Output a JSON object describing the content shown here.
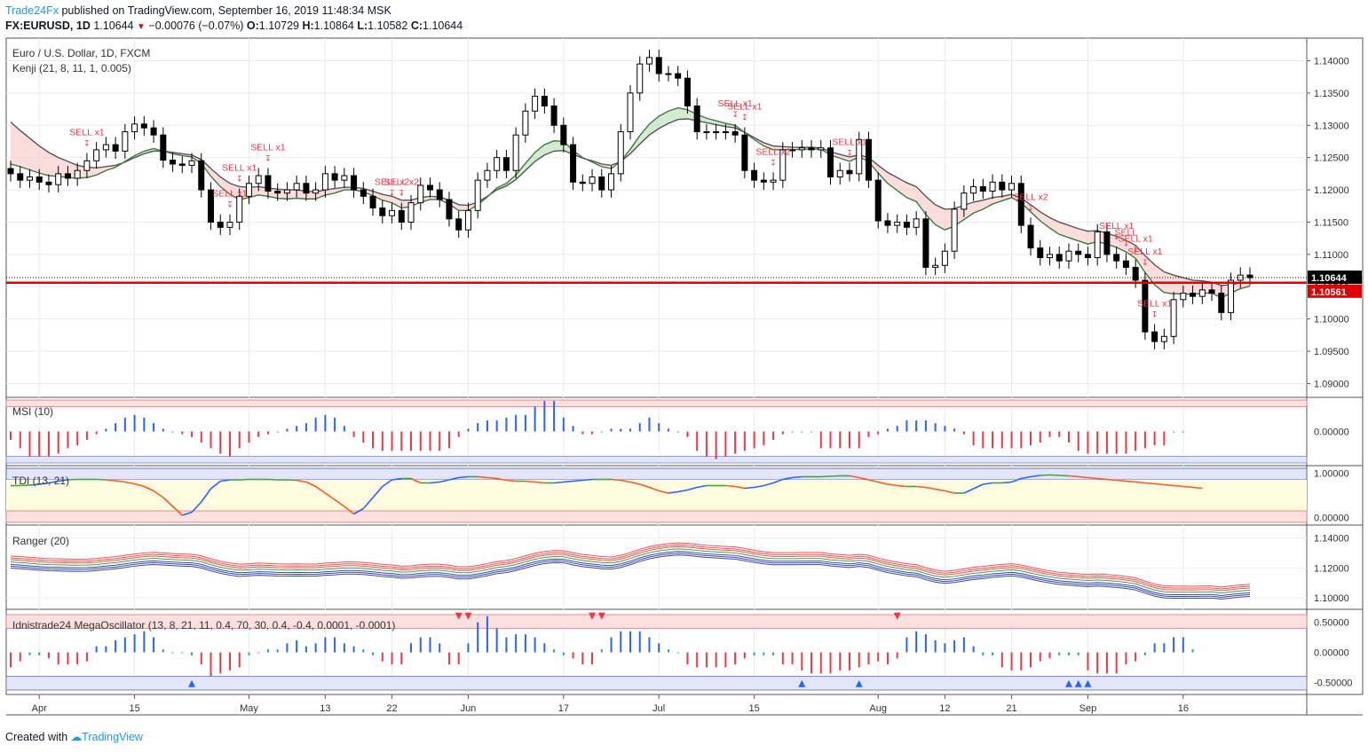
{
  "header": {
    "brand": "Trade24Fx",
    "published": "published on TradingView.com, September 16, 2019 11:48:34 MSK",
    "symbol": "FX:EURUSD, 1D",
    "last": "1.10644",
    "change": "−0.00076 (−0.07%)",
    "o_label": "O:",
    "o": "1.10729",
    "h_label": "H:",
    "h": "1.10864",
    "l_label": "L:",
    "l": "1.10582",
    "c_label": "C:",
    "c": "1.10644"
  },
  "footer": {
    "created": "Created with",
    "tv": "TradingView"
  },
  "colors": {
    "bull": "#ffffff",
    "bear": "#000000",
    "sell": "#f23645",
    "blue": "#2962ff",
    "green": "#26a69a"
  },
  "chart_data": [
    {
      "type": "candlestick",
      "title": "Euro / U.S. Dollar, 1D, FXCM",
      "indicator": "Kenji (21, 8, 11, 1, 0.005)",
      "ylim": [
        1.088,
        1.1435
      ],
      "y_ticks": [
        "1.14000",
        "1.13500",
        "1.13000",
        "1.12500",
        "1.12000",
        "1.11500",
        "1.11000",
        "1.10500",
        "1.10000",
        "1.09500",
        "1.09000"
      ],
      "last_price_label": "1.10644",
      "support_label": "1.10561",
      "support_level": 1.10561,
      "x_ticks": [
        {
          "label": "Apr",
          "i": 3
        },
        {
          "label": "15",
          "i": 13
        },
        {
          "label": "May",
          "i": 25
        },
        {
          "label": "13",
          "i": 33
        },
        {
          "label": "22",
          "i": 40
        },
        {
          "label": "Jun",
          "i": 48
        },
        {
          "label": "17",
          "i": 58
        },
        {
          "label": "Jul",
          "i": 68
        },
        {
          "label": "15",
          "i": 78
        },
        {
          "label": "Aug",
          "i": 91
        },
        {
          "label": "12",
          "i": 98
        },
        {
          "label": "21",
          "i": 105
        },
        {
          "label": "Sep",
          "i": 113
        },
        {
          "label": "16",
          "i": 123
        }
      ],
      "closes": [
        1.1225,
        1.1215,
        1.122,
        1.1212,
        1.1208,
        1.1225,
        1.1218,
        1.123,
        1.1245,
        1.1262,
        1.127,
        1.126,
        1.129,
        1.1302,
        1.1296,
        1.1285,
        1.1246,
        1.124,
        1.1238,
        1.1245,
        1.12,
        1.115,
        1.1142,
        1.115,
        1.119,
        1.121,
        1.1222,
        1.1198,
        1.1195,
        1.12,
        1.121,
        1.1195,
        1.12,
        1.1225,
        1.1215,
        1.1222,
        1.12,
        1.119,
        1.1172,
        1.116,
        1.1168,
        1.115,
        1.118,
        1.1207,
        1.12,
        1.1185,
        1.1155,
        1.1138,
        1.1168,
        1.1215,
        1.123,
        1.125,
        1.123,
        1.1285,
        1.1322,
        1.1345,
        1.133,
        1.13,
        1.127,
        1.1212,
        1.121,
        1.122,
        1.12,
        1.1225,
        1.129,
        1.135,
        1.1395,
        1.1405,
        1.138,
        1.138,
        1.1373,
        1.133,
        1.129,
        1.129,
        1.129,
        1.129,
        1.1285,
        1.123,
        1.1215,
        1.1212,
        1.1215,
        1.1262,
        1.1262,
        1.1265,
        1.1262,
        1.1265,
        1.122,
        1.123,
        1.1225,
        1.1278,
        1.1215,
        1.1152,
        1.1145,
        1.115,
        1.1142,
        1.1155,
        1.108,
        1.1083,
        1.1105,
        1.117,
        1.1195,
        1.1205,
        1.1198,
        1.1212,
        1.12,
        1.121,
        1.1145,
        1.111,
        1.1095,
        1.11,
        1.109,
        1.1105,
        1.11,
        1.1095,
        1.1135,
        1.11,
        1.109,
        1.108,
        1.106,
        1.098,
        1.0965,
        1.0973,
        1.103,
        1.104,
        1.1035,
        1.1045,
        1.104,
        1.101,
        1.106,
        1.1068,
        1.1064
      ],
      "kenji_fast": [
        1.124,
        1.1236,
        1.1231,
        1.1226,
        1.1222,
        1.1221,
        1.1219,
        1.1218,
        1.1219,
        1.1223,
        1.123,
        1.1235,
        1.1244,
        1.1253,
        1.126,
        1.1264,
        1.126,
        1.1256,
        1.1253,
        1.1251,
        1.1241,
        1.1221,
        1.1205,
        1.1193,
        1.1185,
        1.1188,
        1.1192,
        1.119,
        1.1187,
        1.1186,
        1.1187,
        1.1186,
        1.1186,
        1.1192,
        1.1195,
        1.12,
        1.12,
        1.1197,
        1.1191,
        1.1184,
        1.118,
        1.1172,
        1.1174,
        1.1181,
        1.1185,
        1.1185,
        1.1178,
        1.1168,
        1.1168,
        1.1177,
        1.1189,
        1.1203,
        1.121,
        1.1223,
        1.1241,
        1.1258,
        1.127,
        1.1276,
        1.1275,
        1.1261,
        1.125,
        1.1243,
        1.1236,
        1.1233,
        1.1244,
        1.1263,
        1.1284,
        1.1302,
        1.1314,
        1.1322,
        1.1327,
        1.1324,
        1.1317,
        1.1311,
        1.1307,
        1.1303,
        1.13,
        1.1289,
        1.1278,
        1.1268,
        1.1262,
        1.1262,
        1.1262,
        1.1263,
        1.1263,
        1.1263,
        1.1254,
        1.1249,
        1.1244,
        1.1251,
        1.1244,
        1.1226,
        1.121,
        1.1199,
        1.1188,
        1.1182,
        1.1162,
        1.1146,
        1.1138,
        1.1144,
        1.1154,
        1.1164,
        1.117,
        1.1178,
        1.1183,
        1.1188,
        1.118,
        1.1166,
        1.1152,
        1.1141,
        1.1131,
        1.1126,
        1.1121,
        1.1116,
        1.112,
        1.1116,
        1.1111,
        1.1104,
        1.1094,
        1.1072,
        1.1053,
        1.1041,
        1.1039,
        1.1039,
        1.1038,
        1.104,
        1.104,
        1.1033,
        1.104,
        1.1047,
        1.1051
      ],
      "kenji_slow": [
        1.1305,
        1.1292,
        1.128,
        1.1268,
        1.1258,
        1.125,
        1.1244,
        1.1238,
        1.1235,
        1.1234,
        1.1236,
        1.1238,
        1.1243,
        1.125,
        1.1256,
        1.126,
        1.126,
        1.1258,
        1.1256,
        1.1254,
        1.1247,
        1.1233,
        1.122,
        1.121,
        1.1205,
        1.1204,
        1.1205,
        1.1203,
        1.1201,
        1.12,
        1.12,
        1.1198,
        1.1197,
        1.12,
        1.1202,
        1.1204,
        1.1204,
        1.1202,
        1.1198,
        1.1193,
        1.119,
        1.1184,
        1.1184,
        1.1188,
        1.119,
        1.1189,
        1.1184,
        1.1177,
        1.1176,
        1.1181,
        1.119,
        1.12,
        1.1206,
        1.1216,
        1.123,
        1.1244,
        1.1254,
        1.126,
        1.1261,
        1.1255,
        1.1249,
        1.1245,
        1.124,
        1.1238,
        1.1244,
        1.1256,
        1.1271,
        1.1285,
        1.1295,
        1.1303,
        1.1309,
        1.131,
        1.1307,
        1.1304,
        1.1301,
        1.1298,
        1.1296,
        1.1289,
        1.1281,
        1.1273,
        1.1268,
        1.1267,
        1.1266,
        1.1266,
        1.1266,
        1.1265,
        1.1259,
        1.1255,
        1.1251,
        1.1254,
        1.125,
        1.1238,
        1.1227,
        1.1219,
        1.1211,
        1.1205,
        1.119,
        1.1177,
        1.117,
        1.1171,
        1.1176,
        1.1181,
        1.1184,
        1.1188,
        1.119,
        1.1193,
        1.1187,
        1.1177,
        1.1166,
        1.1157,
        1.115,
        1.1145,
        1.114,
        1.1136,
        1.1137,
        1.1133,
        1.1128,
        1.1122,
        1.1114,
        1.1098,
        1.1084,
        1.1073,
        1.1068,
        1.1064,
        1.106,
        1.1059,
        1.1057,
        1.1052,
        1.1053,
        1.1056,
        1.1057
      ],
      "signals": [
        {
          "label": "SELL x1",
          "i": 8
        },
        {
          "label": "SELL x1",
          "i": 23
        },
        {
          "label": "SELL x1",
          "i": 24
        },
        {
          "label": "SELL x1",
          "i": 27
        },
        {
          "label": "SELL x2",
          "i": 40
        },
        {
          "label": "SELL x2",
          "i": 41
        },
        {
          "label": "SELL x1",
          "i": 76
        },
        {
          "label": "SELL x1",
          "i": 77
        },
        {
          "label": "SELL x2",
          "i": 80
        },
        {
          "label": "SELL x1",
          "i": 88
        },
        {
          "label": "SELL x2",
          "i": 107
        },
        {
          "label": "SELL x1",
          "i": 116
        },
        {
          "label": "SELL",
          "i": 117
        },
        {
          "label": "SELL x1",
          "i": 118
        },
        {
          "label": "SELL x1",
          "i": 119
        },
        {
          "label": "SELL x1",
          "i": 120
        }
      ]
    },
    {
      "type": "histogram",
      "title": "MSI (10)",
      "ylim": [
        -0.6,
        0.6
      ],
      "y_ticks": [
        "0.00000"
      ],
      "values": [
        -0.15,
        -0.3,
        -0.45,
        -0.45,
        -0.45,
        -0.4,
        -0.3,
        -0.25,
        -0.15,
        -0.05,
        0.05,
        0.15,
        0.25,
        0.3,
        0.25,
        0.15,
        0.05,
        0.0,
        -0.05,
        -0.1,
        -0.2,
        -0.3,
        -0.4,
        -0.45,
        -0.3,
        -0.2,
        -0.1,
        -0.05,
        0.0,
        0.05,
        0.1,
        0.15,
        0.25,
        0.3,
        0.25,
        0.1,
        -0.1,
        -0.2,
        -0.3,
        -0.35,
        -0.35,
        -0.35,
        -0.35,
        -0.35,
        -0.35,
        -0.35,
        -0.3,
        -0.1,
        0.05,
        0.15,
        0.2,
        0.2,
        0.25,
        0.3,
        0.3,
        0.45,
        0.55,
        0.55,
        0.25,
        0.1,
        -0.05,
        -0.05,
        0.0,
        0.05,
        0.05,
        0.05,
        0.15,
        0.25,
        0.15,
        0.05,
        0.0,
        -0.1,
        -0.35,
        -0.45,
        -0.5,
        -0.45,
        -0.4,
        -0.35,
        -0.3,
        -0.25,
        -0.15,
        -0.05,
        0.0,
        0.0,
        0.0,
        -0.3,
        -0.3,
        -0.3,
        -0.3,
        -0.3,
        -0.1,
        -0.05,
        0.05,
        0.1,
        0.2,
        0.2,
        0.2,
        0.15,
        0.1,
        0.05,
        -0.05,
        -0.25,
        -0.3,
        -0.3,
        -0.3,
        -0.3,
        -0.3,
        -0.25,
        -0.2,
        -0.1,
        -0.1,
        -0.2,
        -0.35,
        -0.4,
        -0.4,
        -0.4,
        -0.4,
        -0.4,
        -0.35,
        -0.3,
        -0.25,
        -0.25,
        0.0,
        0.0
      ]
    },
    {
      "type": "line",
      "title": "TDI (13, 21)",
      "ylim": [
        -0.15,
        1.15
      ],
      "y_ticks": [
        "1.00000",
        "0.00000"
      ],
      "values": [
        0.72,
        0.72,
        0.73,
        0.75,
        0.78,
        0.82,
        0.85,
        0.86,
        0.86,
        0.86,
        0.85,
        0.83,
        0.8,
        0.76,
        0.7,
        0.6,
        0.45,
        0.25,
        0.05,
        0.12,
        0.35,
        0.65,
        0.82,
        0.85,
        0.85,
        0.86,
        0.86,
        0.86,
        0.85,
        0.85,
        0.84,
        0.8,
        0.7,
        0.55,
        0.4,
        0.25,
        0.08,
        0.2,
        0.45,
        0.7,
        0.85,
        0.88,
        0.88,
        0.78,
        0.78,
        0.8,
        0.85,
        0.9,
        0.92,
        0.92,
        0.9,
        0.88,
        0.84,
        0.82,
        0.82,
        0.8,
        0.78,
        0.78,
        0.8,
        0.82,
        0.84,
        0.86,
        0.86,
        0.86,
        0.84,
        0.8,
        0.75,
        0.68,
        0.6,
        0.55,
        0.58,
        0.62,
        0.68,
        0.72,
        0.72,
        0.72,
        0.7,
        0.66,
        0.68,
        0.72,
        0.78,
        0.86,
        0.9,
        0.92,
        0.92,
        0.92,
        0.93,
        0.94,
        0.94,
        0.9,
        0.85,
        0.8,
        0.75,
        0.72,
        0.7,
        0.7,
        0.68,
        0.64,
        0.6,
        0.55,
        0.55,
        0.65,
        0.75,
        0.78,
        0.78,
        0.8,
        0.88,
        0.92,
        0.95,
        0.96,
        0.95,
        0.94,
        0.92,
        0.9,
        0.88,
        0.86,
        0.84,
        0.82,
        0.8,
        0.78,
        0.76,
        0.74,
        0.72,
        0.7,
        0.68,
        0.66
      ]
    },
    {
      "type": "line",
      "title": "Ranger (20)",
      "ylim": [
        1.093,
        1.148
      ],
      "y_ticks": [
        "1.14000",
        "1.12000",
        "1.10000"
      ]
    },
    {
      "type": "histogram",
      "title": "Idnistrade24 MegaOscillator (13, 8, 21, 11, 0.4, 70, 30, 0.4, -0.4, 0.0001, -0.0001)",
      "ylim": [
        -0.7,
        0.7
      ],
      "y_ticks": [
        "0.50000",
        "0.00000",
        "-0.50000"
      ],
      "values": [
        -0.25,
        -0.15,
        -0.05,
        -0.05,
        -0.1,
        -0.2,
        -0.2,
        -0.2,
        -0.15,
        0.1,
        0.1,
        0.2,
        0.25,
        0.3,
        0.35,
        0.25,
        0.05,
        0.0,
        0.0,
        -0.05,
        -0.2,
        -0.4,
        -0.35,
        -0.3,
        -0.25,
        -0.05,
        0.0,
        0.05,
        0.05,
        0.15,
        0.2,
        0.1,
        0.15,
        0.25,
        0.25,
        0.15,
        0.1,
        0.05,
        -0.05,
        -0.15,
        -0.2,
        -0.2,
        0.15,
        0.25,
        0.25,
        0.15,
        -0.2,
        -0.2,
        0.15,
        0.5,
        0.6,
        0.4,
        0.25,
        0.3,
        0.3,
        0.25,
        0.15,
        0.05,
        -0.05,
        -0.1,
        -0.2,
        -0.2,
        0.05,
        0.25,
        0.35,
        0.35,
        0.35,
        0.25,
        0.15,
        0.05,
        0.0,
        -0.2,
        -0.25,
        -0.25,
        -0.25,
        -0.25,
        -0.2,
        -0.1,
        -0.05,
        -0.05,
        -0.05,
        -0.2,
        -0.2,
        -0.3,
        -0.35,
        -0.35,
        -0.35,
        -0.3,
        -0.3,
        -0.25,
        -0.2,
        -0.15,
        -0.2,
        -0.1,
        0.25,
        0.35,
        0.3,
        0.2,
        0.15,
        0.2,
        0.25,
        0.1,
        -0.05,
        -0.05,
        -0.25,
        -0.3,
        -0.3,
        -0.25,
        -0.15,
        -0.1,
        -0.05,
        -0.05,
        -0.05,
        -0.3,
        -0.35,
        -0.35,
        -0.35,
        -0.2,
        -0.15,
        -0.05,
        0.15,
        0.15,
        0.25,
        0.25,
        0.05
      ],
      "markers": [
        {
          "dir": "down",
          "i": 47
        },
        {
          "dir": "down",
          "i": 48
        },
        {
          "dir": "down",
          "i": 61
        },
        {
          "dir": "down",
          "i": 62
        },
        {
          "dir": "down",
          "i": 93
        },
        {
          "dir": "up",
          "i": 19
        },
        {
          "dir": "up",
          "i": 83
        },
        {
          "dir": "up",
          "i": 89
        },
        {
          "dir": "up",
          "i": 111
        },
        {
          "dir": "up",
          "i": 112
        },
        {
          "dir": "up",
          "i": 113
        }
      ]
    }
  ]
}
